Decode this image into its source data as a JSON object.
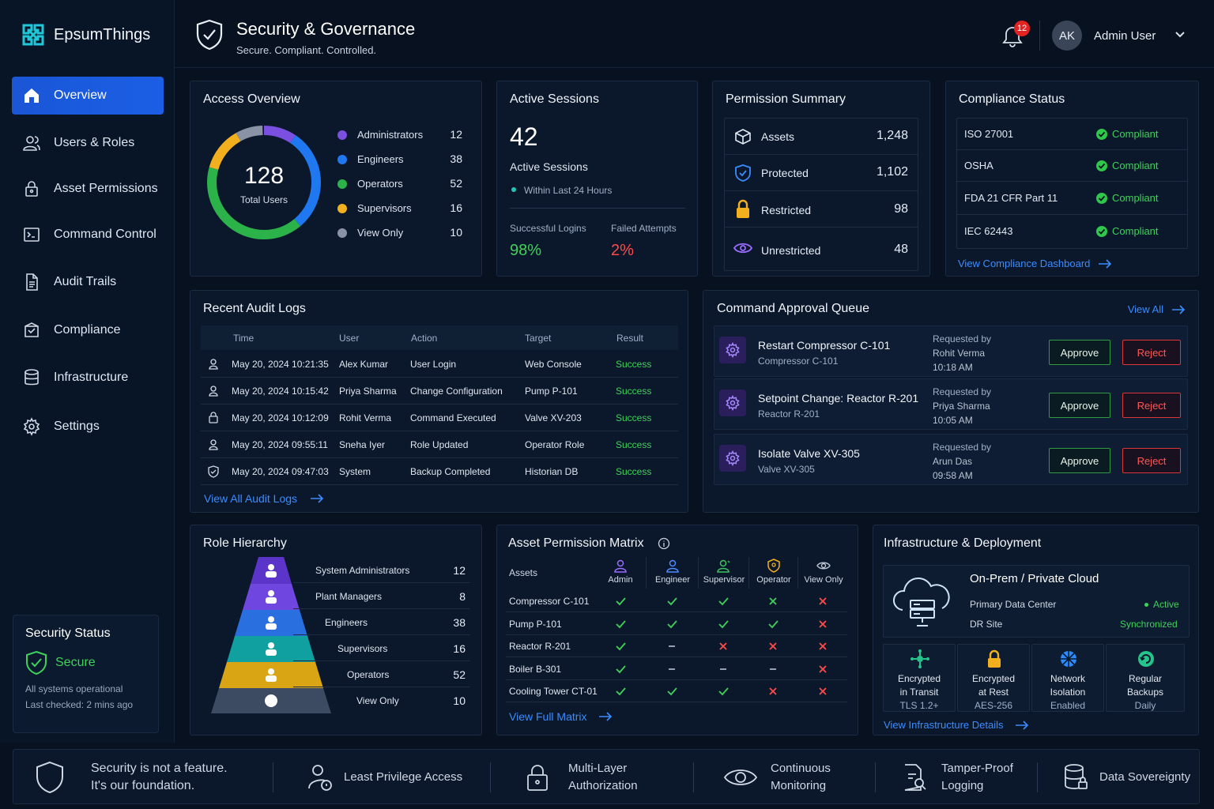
{
  "brand": {
    "name": "EpsumThings"
  },
  "header": {
    "title": "Security & Governance",
    "subtitle": "Secure. Compliant. Controlled.",
    "notification_count": "12",
    "user_initials": "AK",
    "user_name": "Admin User"
  },
  "sidebar": {
    "items": [
      {
        "label": "Overview",
        "icon": "home-icon"
      },
      {
        "label": "Users & Roles",
        "icon": "users-icon"
      },
      {
        "label": "Asset Permissions",
        "icon": "lock-icon"
      },
      {
        "label": "Command Control",
        "icon": "terminal-icon"
      },
      {
        "label": "Audit Trails",
        "icon": "document-icon"
      },
      {
        "label": "Compliance",
        "icon": "compliance-icon"
      },
      {
        "label": "Infrastructure",
        "icon": "server-icon"
      },
      {
        "label": "Settings",
        "icon": "gear-icon"
      }
    ],
    "security_status": {
      "title": "Security Status",
      "state": "Secure",
      "line1": "All systems operational",
      "line2": "Last checked: 2 mins ago"
    }
  },
  "access_overview": {
    "title": "Access Overview",
    "total": "128",
    "total_label": "Total Users",
    "legend": [
      {
        "label": "Administrators",
        "value": "12",
        "color": "#7b4fe0"
      },
      {
        "label": "Engineers",
        "value": "38",
        "color": "#1f78f0"
      },
      {
        "label": "Operators",
        "value": "52",
        "color": "#2bb34a"
      },
      {
        "label": "Supervisors",
        "value": "16",
        "color": "#f2b01e"
      },
      {
        "label": "View Only",
        "value": "10",
        "color": "#8a93a6"
      }
    ]
  },
  "active_sessions": {
    "title": "Active Sessions",
    "count": "42",
    "label": "Active Sessions",
    "window": "Within Last 24 Hours",
    "success_label": "Successful Logins",
    "success_value": "98%",
    "failed_label": "Failed Attempts",
    "failed_value": "2%"
  },
  "permission_summary": {
    "title": "Permission Summary",
    "rows": [
      {
        "label": "Assets",
        "value": "1,248",
        "icon": "cube-icon"
      },
      {
        "label": "Protected",
        "value": "1,102",
        "icon": "shield-check-icon"
      },
      {
        "label": "Restricted",
        "value": "98",
        "icon": "padlock-icon"
      },
      {
        "label": "Unrestricted",
        "value": "48",
        "icon": "eye-icon"
      }
    ]
  },
  "compliance_status": {
    "title": "Compliance Status",
    "rows": [
      {
        "standard": "ISO 27001",
        "status": "Compliant"
      },
      {
        "standard": "OSHA",
        "status": "Compliant"
      },
      {
        "standard": "FDA 21 CFR Part  11",
        "status": "Compliant"
      },
      {
        "standard": "IEC 62443",
        "status": "Compliant"
      }
    ],
    "link": "View Compliance Dashboard"
  },
  "audit_logs": {
    "title": "Recent Audit Logs",
    "columns": [
      "Time",
      "User",
      "Action",
      "Target",
      "Result"
    ],
    "rows": [
      {
        "time": "May 20, 2024 10:21:35",
        "user": "Alex Kumar",
        "action": "User Login",
        "target": "Web Console",
        "result": "Success"
      },
      {
        "time": "May 20, 2024 10:15:42",
        "user": "Priya Sharma",
        "action": "Change Configuration",
        "target": "Pump P-101",
        "result": "Success"
      },
      {
        "time": "May 20, 2024 10:12:09",
        "user": "Rohit Verma",
        "action": "Command Executed",
        "target": "Valve XV-203",
        "result": "Success"
      },
      {
        "time": "May 20, 2024 09:55:11",
        "user": "Sneha Iyer",
        "action": "Role Updated",
        "target": "Operator Role",
        "result": "Success"
      },
      {
        "time": "May 20, 2024 09:47:03",
        "user": "System",
        "action": "Backup Completed",
        "target": "Historian DB",
        "result": "Success"
      }
    ],
    "link": "View All Audit Logs"
  },
  "approval_queue": {
    "title": "Command Approval Queue",
    "view_all": "View All",
    "requested_by_label": "Requested by",
    "approve_label": "Approve",
    "reject_label": "Reject",
    "items": [
      {
        "title": "Restart Compressor C-101",
        "sub": "Compressor C-101",
        "by": "Rohit Verma",
        "time": "10:18 AM"
      },
      {
        "title": "Setpoint Change: Reactor R-201",
        "sub": "Reactor R-201",
        "by": "Priya Sharma",
        "time": "10:05 AM"
      },
      {
        "title": "Isolate Valve XV-305",
        "sub": "Valve XV-305",
        "by": "Arun Das",
        "time": "09:58 AM"
      }
    ]
  },
  "role_hierarchy": {
    "title": "Role Hierarchy",
    "levels": [
      {
        "label": "System Administrators",
        "value": "12",
        "color": "#5b35c9"
      },
      {
        "label": "Plant Managers",
        "value": "8",
        "color": "#6f46e0"
      },
      {
        "label": "Engineers",
        "value": "38",
        "color": "#2a6fe0"
      },
      {
        "label": "Supervisors",
        "value": "16",
        "color": "#10a0a0"
      },
      {
        "label": "Operators",
        "value": "52",
        "color": "#d9a514"
      },
      {
        "label": "View Only",
        "value": "10",
        "color": "#3c4a62"
      }
    ]
  },
  "permission_matrix": {
    "title": "Asset Permission Matrix",
    "assets_label": "Assets",
    "columns": [
      {
        "label": "Admin",
        "color": "#9a6cff"
      },
      {
        "label": "Engineer",
        "color": "#4b8cff"
      },
      {
        "label": "Supervisor",
        "color": "#3cc45c"
      },
      {
        "label": "Operator",
        "color": "#f2b01e"
      },
      {
        "label": "View Only",
        "color": "#b9c3d2"
      }
    ],
    "rows": [
      {
        "asset": "Compressor C-101",
        "cells": [
          "check",
          "check",
          "check",
          "cross-green",
          "cross"
        ]
      },
      {
        "asset": "Pump P-101",
        "cells": [
          "check",
          "check",
          "check",
          "check",
          "cross"
        ]
      },
      {
        "asset": "Reactor R-201",
        "cells": [
          "check",
          "dash",
          "cross",
          "cross",
          "cross"
        ]
      },
      {
        "asset": "Boiler B-301",
        "cells": [
          "check",
          "dash",
          "dash",
          "dash",
          "cross"
        ]
      },
      {
        "asset": "Cooling Tower CT-01",
        "cells": [
          "check",
          "check",
          "check",
          "cross",
          "cross"
        ]
      }
    ],
    "link": "View Full Matrix"
  },
  "infrastructure": {
    "title": "Infrastructure & Deployment",
    "deployment": "On-Prem / Private Cloud",
    "primary_label": "Primary Data Center",
    "primary_status": "Active",
    "dr_label": "DR Site",
    "dr_status": "Synchronized",
    "features": [
      {
        "line1": "Encrypted",
        "line2": "in Transit",
        "line3": "TLS 1.2+",
        "icon": "network-icon",
        "color": "#25c48a"
      },
      {
        "line1": "Encrypted",
        "line2": "at Rest",
        "line3": "AES-256",
        "icon": "padlock-icon",
        "color": "#f2b01e"
      },
      {
        "line1": "Network",
        "line2": "Isolation",
        "line3": "Enabled",
        "icon": "globe-icon",
        "color": "#2a8cff"
      },
      {
        "line1": "Regular",
        "line2": "Backups",
        "line3": "Daily",
        "icon": "backup-icon",
        "color": "#25c48a"
      }
    ],
    "link": "View Infrastructure Details"
  },
  "footer": {
    "tagline1": "Security is not a feature.",
    "tagline2": "It's our foundation.",
    "items": [
      {
        "line1": "Least Privilege Access",
        "line2": ""
      },
      {
        "line1": "Multi-Layer",
        "line2": "Authorization"
      },
      {
        "line1": "Continuous",
        "line2": "Monitoring"
      },
      {
        "line1": "Tamper-Proof",
        "line2": "Logging"
      },
      {
        "line1": "Data Sovereignty",
        "line2": ""
      }
    ]
  }
}
